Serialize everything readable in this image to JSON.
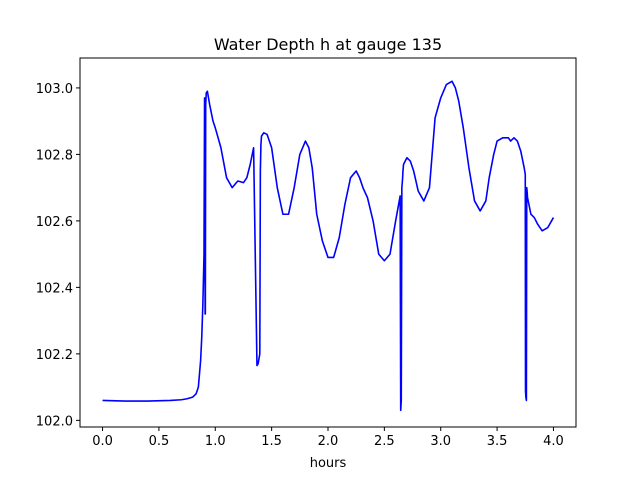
{
  "chart_data": {
    "type": "line",
    "title": "Water Depth h at gauge 135",
    "xlabel": "hours",
    "ylabel": "",
    "xlim": [
      -0.2,
      4.2
    ],
    "ylim": [
      101.98,
      103.09
    ],
    "xticks": [
      0.0,
      0.5,
      1.0,
      1.5,
      2.0,
      2.5,
      3.0,
      3.5,
      4.0
    ],
    "xtick_labels": [
      "0.0",
      "0.5",
      "1.0",
      "1.5",
      "2.0",
      "2.5",
      "3.0",
      "3.5",
      "4.0"
    ],
    "yticks": [
      102.0,
      102.2,
      102.4,
      102.6,
      102.8,
      103.0
    ],
    "ytick_labels": [
      "102.0",
      "102.2",
      "102.4",
      "102.6",
      "102.8",
      "103.0"
    ],
    "grid": false,
    "series": [
      {
        "color": "#0000ff",
        "x": [
          0.0,
          0.2,
          0.4,
          0.6,
          0.7,
          0.75,
          0.8,
          0.83,
          0.85,
          0.87,
          0.88,
          0.89,
          0.9,
          0.905,
          0.91,
          0.912,
          0.915,
          0.92,
          0.93,
          0.95,
          0.98,
          1.0,
          1.05,
          1.1,
          1.15,
          1.2,
          1.25,
          1.28,
          1.31,
          1.34,
          1.37,
          1.38,
          1.385,
          1.39,
          1.395,
          1.4,
          1.405,
          1.41,
          1.43,
          1.46,
          1.5,
          1.55,
          1.6,
          1.65,
          1.7,
          1.75,
          1.8,
          1.83,
          1.86,
          1.9,
          1.95,
          2.0,
          2.05,
          2.1,
          2.15,
          2.2,
          2.25,
          2.28,
          2.31,
          2.35,
          2.4,
          2.45,
          2.5,
          2.55,
          2.6,
          2.64,
          2.645,
          2.65,
          2.655,
          2.66,
          2.662,
          2.665,
          2.67,
          2.7,
          2.73,
          2.76,
          2.8,
          2.85,
          2.9,
          2.95,
          3.0,
          3.05,
          3.1,
          3.13,
          3.16,
          3.2,
          3.25,
          3.3,
          3.35,
          3.4,
          3.43,
          3.47,
          3.5,
          3.55,
          3.6,
          3.62,
          3.65,
          3.68,
          3.71,
          3.74,
          3.75,
          3.752,
          3.755,
          3.76,
          3.763,
          3.766,
          3.77,
          3.8,
          3.83,
          3.86,
          3.9,
          3.95,
          4.0
        ],
        "y": [
          102.06,
          102.058,
          102.058,
          102.06,
          102.062,
          102.065,
          102.07,
          102.08,
          102.1,
          102.18,
          102.25,
          102.35,
          102.5,
          102.97,
          102.32,
          102.32,
          102.95,
          102.985,
          102.99,
          102.95,
          102.9,
          102.88,
          102.82,
          102.73,
          102.7,
          102.72,
          102.715,
          102.73,
          102.77,
          102.82,
          102.165,
          102.17,
          102.18,
          102.19,
          102.2,
          102.75,
          102.83,
          102.855,
          102.865,
          102.86,
          102.82,
          102.7,
          102.62,
          102.62,
          102.7,
          102.8,
          102.84,
          102.82,
          102.76,
          102.62,
          102.54,
          102.49,
          102.49,
          102.55,
          102.65,
          102.73,
          102.75,
          102.73,
          102.7,
          102.67,
          102.6,
          102.5,
          102.48,
          102.5,
          102.6,
          102.675,
          102.03,
          102.06,
          102.7,
          102.72,
          102.73,
          102.75,
          102.77,
          102.79,
          102.78,
          102.75,
          102.69,
          102.66,
          102.7,
          102.91,
          102.97,
          103.01,
          103.02,
          103.0,
          102.96,
          102.88,
          102.76,
          102.66,
          102.63,
          102.66,
          102.73,
          102.8,
          102.84,
          102.85,
          102.85,
          102.84,
          102.85,
          102.84,
          102.81,
          102.76,
          102.74,
          102.09,
          102.07,
          102.06,
          102.7,
          102.69,
          102.67,
          102.62,
          102.61,
          102.59,
          102.57,
          102.58,
          102.61
        ]
      }
    ]
  }
}
